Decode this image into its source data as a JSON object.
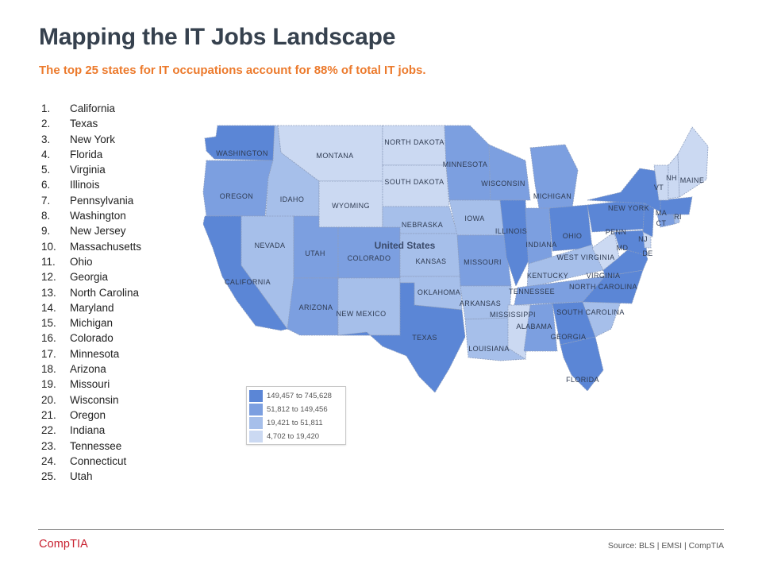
{
  "header": {
    "title": "Mapping the IT Jobs Landscape",
    "subtitle": "The top 25 states for IT occupations account for 88% of total IT jobs."
  },
  "rankings": [
    {
      "rank": "1.",
      "state": "California"
    },
    {
      "rank": "2.",
      "state": "Texas"
    },
    {
      "rank": "3.",
      "state": "New York"
    },
    {
      "rank": "4.",
      "state": "Florida"
    },
    {
      "rank": "5.",
      "state": "Virginia"
    },
    {
      "rank": "6.",
      "state": "Illinois"
    },
    {
      "rank": "7.",
      "state": "Pennsylvania"
    },
    {
      "rank": "8.",
      "state": "Washington"
    },
    {
      "rank": "9.",
      "state": "New Jersey"
    },
    {
      "rank": "10.",
      "state": "Massachusetts"
    },
    {
      "rank": "11.",
      "state": "Ohio"
    },
    {
      "rank": "12.",
      "state": "Georgia"
    },
    {
      "rank": "13.",
      "state": "North  Carolina"
    },
    {
      "rank": "14.",
      "state": "Maryland"
    },
    {
      "rank": "15.",
      "state": "Michigan"
    },
    {
      "rank": "16.",
      "state": "Colorado"
    },
    {
      "rank": "17.",
      "state": "Minnesota"
    },
    {
      "rank": "18.",
      "state": "Arizona"
    },
    {
      "rank": "19.",
      "state": "Missouri"
    },
    {
      "rank": "20.",
      "state": "Wisconsin"
    },
    {
      "rank": "21.",
      "state": "Oregon"
    },
    {
      "rank": "22.",
      "state": "Indiana"
    },
    {
      "rank": "23.",
      "state": "Tennessee"
    },
    {
      "rank": "24.",
      "state": "Connecticut"
    },
    {
      "rank": "25.",
      "state": "Utah"
    }
  ],
  "map": {
    "country_label": "United States",
    "tier_colors": [
      "#5b86d6",
      "#7c9fe0",
      "#a6bfea",
      "#cbd9f2"
    ],
    "border_color": "#8e9fbf",
    "states": [
      {
        "id": "wa",
        "label": "WASHINGTON",
        "tier": 0
      },
      {
        "id": "or",
        "label": "OREGON",
        "tier": 1
      },
      {
        "id": "ca",
        "label": "CALIFORNIA",
        "tier": 0
      },
      {
        "id": "id",
        "label": "IDAHO",
        "tier": 2
      },
      {
        "id": "nv",
        "label": "NEVADA",
        "tier": 2
      },
      {
        "id": "mt",
        "label": "MONTANA",
        "tier": 3
      },
      {
        "id": "wy",
        "label": "WYOMING",
        "tier": 3
      },
      {
        "id": "ut",
        "label": "UTAH",
        "tier": 1
      },
      {
        "id": "az",
        "label": "ARIZONA",
        "tier": 1
      },
      {
        "id": "co",
        "label": "COLORADO",
        "tier": 1
      },
      {
        "id": "nm",
        "label": "NEW MEXICO",
        "tier": 2
      },
      {
        "id": "nd",
        "label": "NORTH DAKOTA",
        "tier": 3
      },
      {
        "id": "sd",
        "label": "SOUTH DAKOTA",
        "tier": 3
      },
      {
        "id": "ne",
        "label": "NEBRASKA",
        "tier": 2
      },
      {
        "id": "ks",
        "label": "KANSAS",
        "tier": 2
      },
      {
        "id": "ok",
        "label": "OKLAHOMA",
        "tier": 2
      },
      {
        "id": "tx",
        "label": "TEXAS",
        "tier": 0
      },
      {
        "id": "mn",
        "label": "MINNESOTA",
        "tier": 1
      },
      {
        "id": "ia",
        "label": "IOWA",
        "tier": 2
      },
      {
        "id": "mo",
        "label": "MISSOURI",
        "tier": 1
      },
      {
        "id": "ar",
        "label": "ARKANSAS",
        "tier": 2
      },
      {
        "id": "la",
        "label": "LOUISIANA",
        "tier": 2
      },
      {
        "id": "wi",
        "label": "WISCONSIN",
        "tier": 1
      },
      {
        "id": "il",
        "label": "ILLINOIS",
        "tier": 0
      },
      {
        "id": "mi",
        "label": "MICHIGAN",
        "tier": 1
      },
      {
        "id": "in",
        "label": "INDIANA",
        "tier": 1
      },
      {
        "id": "oh",
        "label": "OHIO",
        "tier": 0
      },
      {
        "id": "ky",
        "label": "KENTUCKY",
        "tier": 2
      },
      {
        "id": "tn",
        "label": "TENNESSEE",
        "tier": 1
      },
      {
        "id": "ms",
        "label": "MISSISSIPPI",
        "tier": 3
      },
      {
        "id": "al",
        "label": "ALABAMA",
        "tier": 1
      },
      {
        "id": "ga",
        "label": "GEORGIA",
        "tier": 0
      },
      {
        "id": "fl",
        "label": "FLORIDA",
        "tier": 0
      },
      {
        "id": "sc",
        "label": "SOUTH CAROLINA",
        "tier": 2
      },
      {
        "id": "nc",
        "label": "NORTH CAROLINA",
        "tier": 0
      },
      {
        "id": "va",
        "label": "VIRGINIA",
        "tier": 0
      },
      {
        "id": "wv",
        "label": "WEST VIRGINIA",
        "tier": 3
      },
      {
        "id": "md",
        "label": "MD",
        "tier": 0
      },
      {
        "id": "de",
        "label": "DE",
        "tier": 3
      },
      {
        "id": "pa",
        "label": "PENN",
        "tier": 0
      },
      {
        "id": "nj",
        "label": "NJ",
        "tier": 0
      },
      {
        "id": "ny",
        "label": "NEW YORK",
        "tier": 0
      },
      {
        "id": "ct",
        "label": "CT",
        "tier": 1
      },
      {
        "id": "ri",
        "label": "RI",
        "tier": 2
      },
      {
        "id": "ma",
        "label": "MA",
        "tier": 0
      },
      {
        "id": "vt",
        "label": "VT",
        "tier": 3
      },
      {
        "id": "nh",
        "label": "NH",
        "tier": 3
      },
      {
        "id": "me",
        "label": "MAINE",
        "tier": 3
      }
    ]
  },
  "legend": [
    {
      "label": "149,457 to 745,628",
      "tier": 0
    },
    {
      "label": "51,812 to 149,456",
      "tier": 1
    },
    {
      "label": "19,421 to 51,811",
      "tier": 2
    },
    {
      "label": "4,702 to 19,420",
      "tier": 3
    }
  ],
  "footer": {
    "logo": "CompTIA",
    "source": "Source: BLS | EMSI | CompTIA"
  }
}
